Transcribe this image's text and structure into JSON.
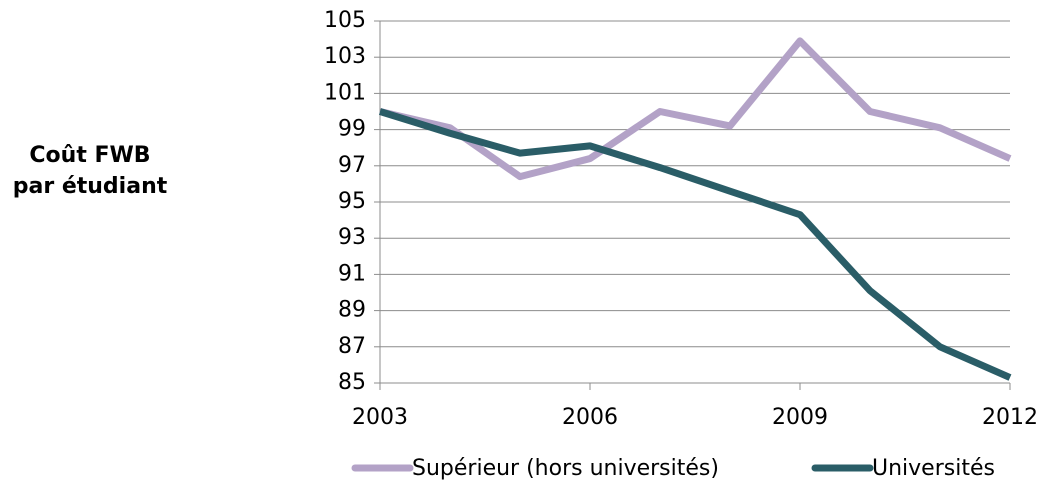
{
  "chart_data": {
    "type": "line",
    "y_label": "Coût FWB par étudiant",
    "x": [
      2003,
      2004,
      2005,
      2006,
      2007,
      2008,
      2009,
      2010,
      2011,
      2012
    ],
    "xlim": [
      2003,
      2012
    ],
    "xticks": [
      2003,
      2006,
      2009,
      2012
    ],
    "ylim": [
      85,
      105
    ],
    "yticks": [
      85,
      87,
      89,
      91,
      93,
      95,
      97,
      99,
      101,
      103,
      105
    ],
    "grid": true,
    "legend": "bottom",
    "series": [
      {
        "name": "Supérieur (hors universités)",
        "color": "#b3a2c7",
        "values": [
          100,
          99.1,
          96.4,
          97.4,
          100,
          99.2,
          103.9,
          100,
          99.1,
          97.4
        ]
      },
      {
        "name": "Universités",
        "color": "#2a5d67",
        "values": [
          100,
          98.8,
          97.7,
          98.1,
          96.9,
          95.6,
          94.3,
          90.1,
          87,
          85.3
        ]
      }
    ]
  }
}
